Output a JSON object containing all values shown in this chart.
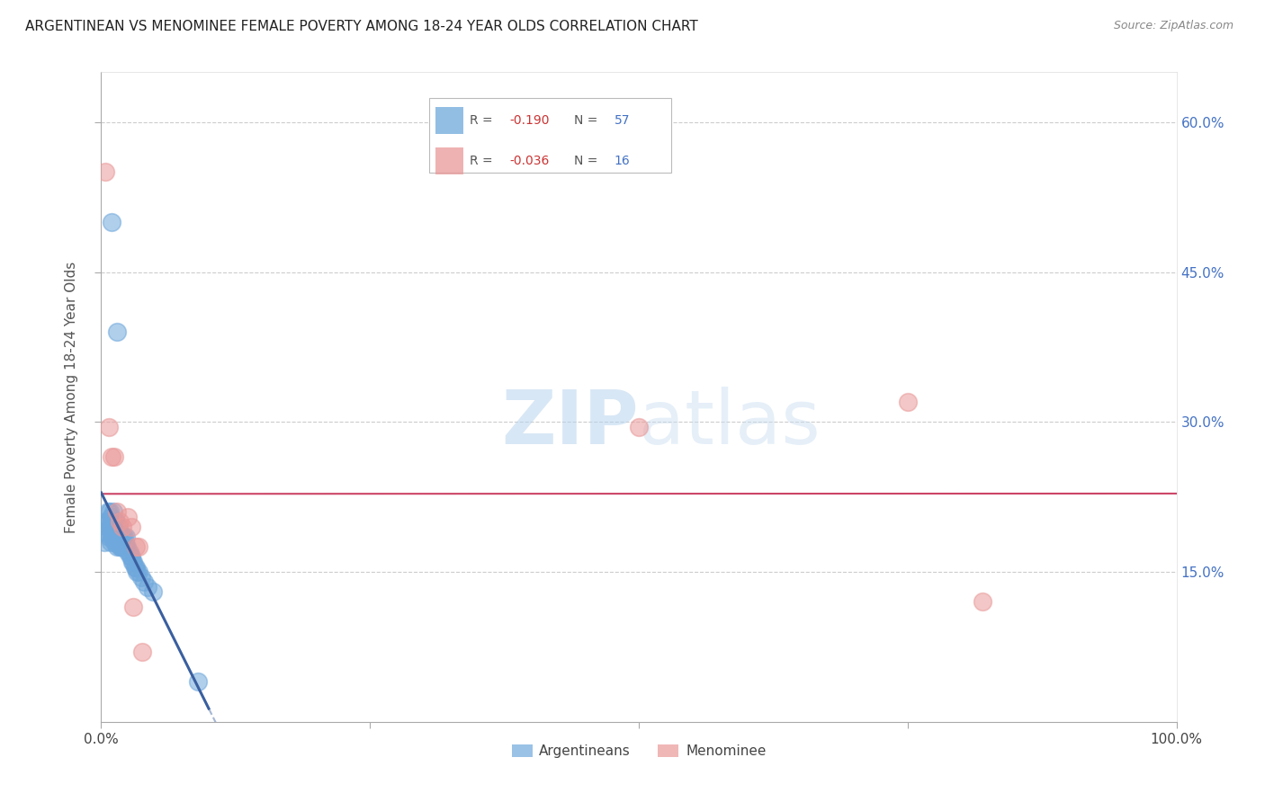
{
  "title": "ARGENTINEAN VS MENOMINEE FEMALE POVERTY AMONG 18-24 YEAR OLDS CORRELATION CHART",
  "source": "Source: ZipAtlas.com",
  "ylabel": "Female Poverty Among 18-24 Year Olds",
  "xlim": [
    0.0,
    1.0
  ],
  "ylim": [
    0.0,
    0.65
  ],
  "yticks_right": [
    0.15,
    0.3,
    0.45,
    0.6
  ],
  "ytick_labels_right": [
    "15.0%",
    "30.0%",
    "45.0%",
    "60.0%"
  ],
  "argentinean_R": -0.19,
  "argentinean_N": 57,
  "menominee_R": -0.036,
  "menominee_N": 16,
  "argentinean_color": "#6fa8dc",
  "menominee_color": "#ea9999",
  "trendline_argentinean_color": "#3a5fa0",
  "trendline_menominee_color": "#cc4466",
  "argentinean_x": [
    0.003,
    0.004,
    0.005,
    0.006,
    0.006,
    0.007,
    0.007,
    0.008,
    0.008,
    0.009,
    0.009,
    0.01,
    0.01,
    0.011,
    0.011,
    0.012,
    0.012,
    0.013,
    0.013,
    0.014,
    0.014,
    0.015,
    0.015,
    0.016,
    0.016,
    0.017,
    0.017,
    0.018,
    0.018,
    0.019,
    0.019,
    0.02,
    0.02,
    0.021,
    0.021,
    0.022,
    0.022,
    0.023,
    0.023,
    0.024,
    0.025,
    0.026,
    0.027,
    0.028,
    0.029,
    0.03,
    0.031,
    0.032,
    0.033,
    0.035,
    0.037,
    0.04,
    0.043,
    0.048,
    0.01,
    0.015,
    0.09
  ],
  "argentinean_y": [
    0.18,
    0.19,
    0.2,
    0.195,
    0.21,
    0.185,
    0.2,
    0.195,
    0.21,
    0.18,
    0.205,
    0.185,
    0.195,
    0.195,
    0.21,
    0.18,
    0.2,
    0.185,
    0.2,
    0.19,
    0.2,
    0.175,
    0.195,
    0.185,
    0.195,
    0.175,
    0.185,
    0.175,
    0.185,
    0.175,
    0.185,
    0.175,
    0.185,
    0.175,
    0.185,
    0.175,
    0.18,
    0.175,
    0.185,
    0.175,
    0.17,
    0.17,
    0.165,
    0.165,
    0.16,
    0.16,
    0.155,
    0.155,
    0.15,
    0.15,
    0.145,
    0.14,
    0.135,
    0.13,
    0.5,
    0.39,
    0.04
  ],
  "menominee_x": [
    0.004,
    0.007,
    0.01,
    0.012,
    0.015,
    0.017,
    0.02,
    0.025,
    0.028,
    0.032,
    0.035,
    0.038,
    0.5,
    0.75,
    0.82,
    0.03
  ],
  "menominee_y": [
    0.55,
    0.295,
    0.265,
    0.265,
    0.21,
    0.2,
    0.195,
    0.205,
    0.195,
    0.175,
    0.175,
    0.07,
    0.295,
    0.32,
    0.12,
    0.115
  ]
}
